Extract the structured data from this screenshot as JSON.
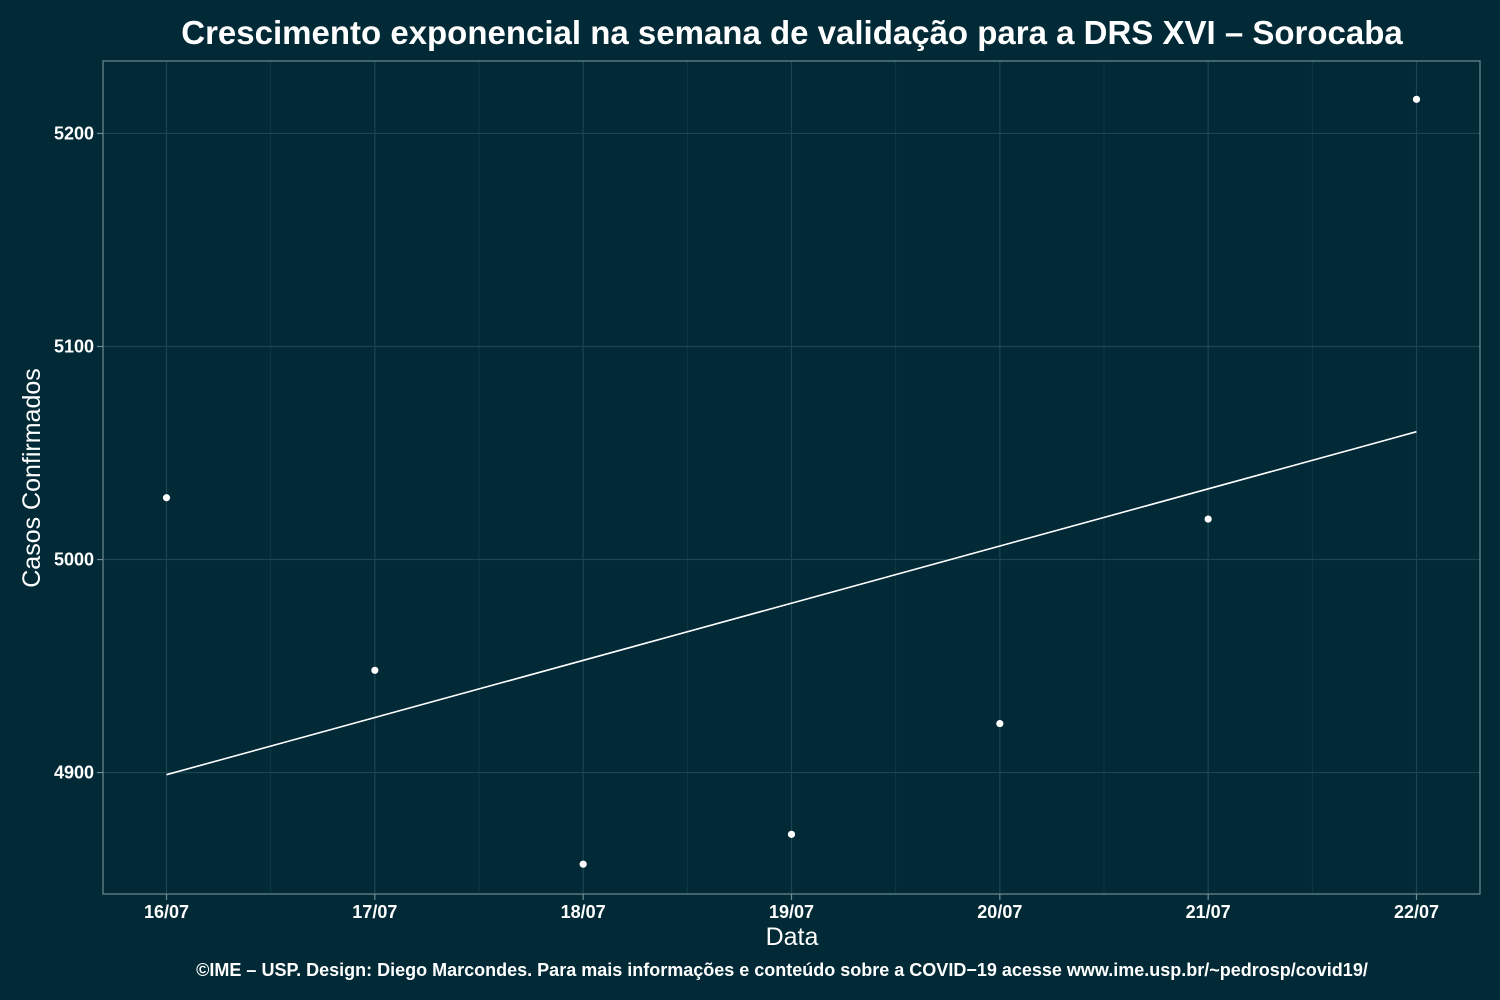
{
  "chart_data": {
    "type": "scatter",
    "title": "Crescimento exponencial na semana de validação para a DRS XVI – Sorocaba",
    "xlabel": "Data",
    "ylabel": "Casos Confirmados",
    "categories": [
      "16/07",
      "17/07",
      "18/07",
      "19/07",
      "20/07",
      "21/07",
      "22/07"
    ],
    "y_ticks": [
      4900,
      5000,
      5100,
      5200
    ],
    "ylim": [
      4843,
      5234
    ],
    "grid": true,
    "series": [
      {
        "type": "scatter",
        "x": [
          "16/07",
          "17/07",
          "18/07",
          "19/07",
          "20/07",
          "21/07",
          "22/07"
        ],
        "values": [
          5029,
          4948,
          4857,
          4871,
          4923,
          5019,
          5216
        ]
      },
      {
        "type": "line",
        "x": [
          "16/07",
          "22/07"
        ],
        "values": [
          4899,
          5060
        ]
      }
    ],
    "caption": "©IME – USP. Design: Diego Marcondes. Para mais informações e conteúdo sobre a COVID−19 acesse www.ime.usp.br/~pedrosp/covid19/",
    "colors": {
      "background": "#012a36",
      "points": "#ffffff",
      "line": "#ffffff",
      "panel_border": "#6f8a90",
      "grid": "#1b4550"
    }
  }
}
